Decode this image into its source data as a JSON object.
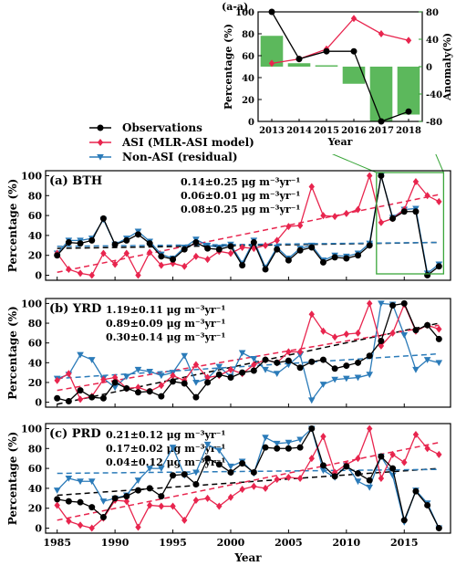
{
  "figure": {
    "legend": {
      "items": [
        {
          "label": "Observations",
          "color": "#000000",
          "marker": "circle"
        },
        {
          "label": "ASI (MLR-ASI model)",
          "color": "#e8254e",
          "marker": "diamond"
        },
        {
          "label": "Non-ASI (residual)",
          "color": "#2b7bb9",
          "marker": "triangle-down"
        }
      ]
    },
    "colors": {
      "obs": "#000000",
      "asi": "#e8254e",
      "nonasi": "#2b7bb9",
      "anomaly": "#5cb85c",
      "anomaly_axis": "#2e9a2e",
      "inset_frame": "#3aa63a"
    }
  },
  "chart_data": [
    {
      "id": "inset",
      "type": "bar+line",
      "panel_label": "(a-a)",
      "x": [
        2013,
        2014,
        2015,
        2016,
        2017,
        2018
      ],
      "xlabel": "Year",
      "ylabel": "Percentage (%)",
      "ylabel_right": "Anomaly(%)",
      "ylim": [
        0,
        100
      ],
      "ylim_right": [
        -80,
        80
      ],
      "yticks": [
        0,
        20,
        40,
        60,
        80,
        100
      ],
      "yticks_right": [
        -80,
        -40,
        0,
        40,
        80
      ],
      "series": [
        {
          "name": "Observations",
          "color": "#000000",
          "marker": "circle",
          "values": [
            100,
            57,
            64,
            64,
            0,
            9
          ]
        },
        {
          "name": "ASI (MLR-ASI model)",
          "color": "#e8254e",
          "marker": "diamond",
          "values": [
            53,
            57,
            66,
            94,
            80,
            74
          ]
        }
      ],
      "anomaly_bars": [
        45,
        5,
        2,
        -25,
        -80,
        -70
      ]
    },
    {
      "id": "bth",
      "type": "line",
      "panel_label": "(a) BTH",
      "xlim": [
        1984,
        2019
      ],
      "ylim": [
        -5,
        105
      ],
      "xticks": [
        1985,
        1990,
        1995,
        2000,
        2005,
        2010,
        2015
      ],
      "yticks": [
        0,
        20,
        40,
        60,
        80,
        100
      ],
      "ylabel": "Percentage (%)",
      "years": [
        1985,
        1986,
        1987,
        1988,
        1989,
        1990,
        1991,
        1992,
        1993,
        1994,
        1995,
        1996,
        1997,
        1998,
        1999,
        2000,
        2001,
        2002,
        2003,
        2004,
        2005,
        2006,
        2007,
        2008,
        2009,
        2010,
        2011,
        2012,
        2013,
        2014,
        2015,
        2016,
        2017,
        2018
      ],
      "trend_texts": [
        {
          "text": "0.14±0.25 μg m⁻³yr⁻¹",
          "color": "#000000"
        },
        {
          "text": "0.06±0.01 μg m⁻³yr⁻¹",
          "color": "#e8254e"
        },
        {
          "text": "0.08±0.25 μg m⁻³yr⁻¹",
          "color": "#2b7bb9"
        }
      ],
      "series": [
        {
          "name": "Observations",
          "color": "#000000",
          "marker": "circle",
          "values": [
            20,
            33,
            32,
            35,
            57,
            31,
            35,
            41,
            32,
            19,
            16,
            26,
            33,
            27,
            26,
            29,
            10,
            33,
            6,
            26,
            15,
            25,
            28,
            13,
            18,
            17,
            20,
            30,
            100,
            57,
            64,
            64,
            0,
            9
          ]
        },
        {
          "name": "ASI (MLR-ASI model)",
          "color": "#e8254e",
          "marker": "diamond",
          "values": [
            22,
            6,
            2,
            0,
            22,
            11,
            22,
            0,
            23,
            10,
            12,
            9,
            19,
            16,
            24,
            22,
            28,
            27,
            30,
            35,
            49,
            50,
            89,
            60,
            59,
            62,
            66,
            100,
            53,
            57,
            66,
            94,
            80,
            74
          ]
        },
        {
          "name": "Non-ASI (residual)",
          "color": "#2b7bb9",
          "marker": "triangle-down",
          "values": [
            22,
            35,
            35,
            37,
            56,
            31,
            37,
            44,
            34,
            21,
            17,
            28,
            36,
            30,
            28,
            31,
            12,
            35,
            8,
            28,
            17,
            27,
            30,
            15,
            20,
            19,
            22,
            32,
            100,
            58,
            66,
            67,
            2,
            11
          ]
        }
      ],
      "trend_lines": [
        {
          "color": "#000000",
          "start": [
            1985,
            27
          ],
          "end": [
            2018,
            33
          ]
        },
        {
          "color": "#e8254e",
          "start": [
            1985,
            3
          ],
          "end": [
            2018,
            81
          ]
        },
        {
          "color": "#2b7bb9",
          "start": [
            1985,
            29
          ],
          "end": [
            2018,
            33
          ]
        }
      ]
    },
    {
      "id": "yrd",
      "type": "line",
      "panel_label": "(b) YRD",
      "xlim": [
        1984,
        2019
      ],
      "ylim": [
        -5,
        105
      ],
      "xticks": [
        1985,
        1990,
        1995,
        2000,
        2005,
        2010,
        2015
      ],
      "yticks": [
        0,
        20,
        40,
        60,
        80,
        100
      ],
      "ylabel": "Percentage (%)",
      "years": [
        1985,
        1986,
        1987,
        1988,
        1989,
        1990,
        1991,
        1992,
        1993,
        1994,
        1995,
        1996,
        1997,
        1998,
        1999,
        2000,
        2001,
        2002,
        2003,
        2004,
        2005,
        2006,
        2007,
        2008,
        2009,
        2010,
        2011,
        2012,
        2013,
        2014,
        2015,
        2016,
        2017,
        2018
      ],
      "trend_texts": [
        {
          "text": "1.19±0.11 μg m⁻³yr⁻¹",
          "color": "#000000"
        },
        {
          "text": "0.89±0.09 μg m⁻³yr⁻¹",
          "color": "#e8254e"
        },
        {
          "text": "0.30±0.14 μg m⁻³yr⁻¹",
          "color": "#2b7bb9"
        }
      ],
      "series": [
        {
          "name": "Observations",
          "color": "#000000",
          "marker": "circle",
          "values": [
            4,
            1,
            12,
            5,
            4,
            20,
            14,
            10,
            11,
            6,
            21,
            19,
            5,
            20,
            28,
            25,
            30,
            32,
            43,
            40,
            42,
            35,
            41,
            43,
            34,
            37,
            40,
            47,
            62,
            98,
            100,
            73,
            78,
            64
          ]
        },
        {
          "name": "ASI (MLR-ASI model)",
          "color": "#e8254e",
          "marker": "diamond",
          "values": [
            22,
            29,
            3,
            6,
            23,
            25,
            14,
            15,
            11,
            17,
            27,
            22,
            38,
            25,
            27,
            33,
            29,
            38,
            43,
            40,
            51,
            51,
            89,
            72,
            66,
            69,
            70,
            100,
            57,
            70,
            99,
            72,
            78,
            74
          ]
        },
        {
          "name": "Non-ASI (residual)",
          "color": "#2b7bb9",
          "marker": "triangle-down",
          "values": [
            24,
            28,
            48,
            43,
            24,
            15,
            26,
            33,
            31,
            27,
            30,
            47,
            20,
            24,
            36,
            26,
            50,
            44,
            33,
            29,
            38,
            48,
            2,
            18,
            23,
            24,
            25,
            28,
            100,
            99,
            68,
            33,
            43,
            40
          ]
        }
      ],
      "trend_lines": [
        {
          "color": "#000000",
          "start": [
            1985,
            -2
          ],
          "end": [
            2018,
            80
          ]
        },
        {
          "color": "#e8254e",
          "start": [
            1985,
            12
          ],
          "end": [
            2018,
            78
          ]
        },
        {
          "color": "#2b7bb9",
          "start": [
            1985,
            24
          ],
          "end": [
            2018,
            49
          ]
        }
      ]
    },
    {
      "id": "prd",
      "type": "line",
      "panel_label": "(c) PRD",
      "xlim": [
        1984,
        2019
      ],
      "ylim": [
        -5,
        105
      ],
      "xticks": [
        1985,
        1990,
        1995,
        2000,
        2005,
        2010,
        2015
      ],
      "yticks": [
        0,
        20,
        40,
        60,
        80,
        100
      ],
      "ylabel": "Percentage (%)",
      "xlabel": "Year",
      "years": [
        1985,
        1986,
        1987,
        1988,
        1989,
        1990,
        1991,
        1992,
        1993,
        1994,
        1995,
        1996,
        1997,
        1998,
        1999,
        2000,
        2001,
        2002,
        2003,
        2004,
        2005,
        2006,
        2007,
        2008,
        2009,
        2010,
        2011,
        2012,
        2013,
        2014,
        2015,
        2016,
        2017,
        2018
      ],
      "trend_texts": [
        {
          "text": "0.21±0.12 μg m⁻³yr⁻¹",
          "color": "#000000"
        },
        {
          "text": "0.17±0.02 μg m⁻³yr⁻¹",
          "color": "#e8254e"
        },
        {
          "text": "0.04±0.12 μg m⁻³yr⁻¹",
          "color": "#2b7bb9"
        }
      ],
      "series": [
        {
          "name": "Observations",
          "color": "#000000",
          "marker": "circle",
          "values": [
            29,
            27,
            26,
            21,
            11,
            30,
            32,
            38,
            40,
            32,
            53,
            54,
            44,
            70,
            64,
            56,
            65,
            56,
            81,
            80,
            80,
            81,
            100,
            63,
            52,
            62,
            55,
            48,
            72,
            60,
            8,
            37,
            23,
            0
          ]
        },
        {
          "name": "ASI (MLR-ASI model)",
          "color": "#e8254e",
          "marker": "diamond",
          "values": [
            23,
            7,
            3,
            0,
            10,
            28,
            27,
            1,
            23,
            22,
            22,
            8,
            28,
            30,
            22,
            31,
            39,
            42,
            40,
            49,
            51,
            50,
            70,
            92,
            56,
            64,
            70,
            100,
            50,
            74,
            66,
            94,
            80,
            74
          ]
        },
        {
          "name": "Non-ASI (residual)",
          "color": "#2b7bb9",
          "marker": "triangle-down",
          "values": [
            38,
            50,
            47,
            47,
            27,
            30,
            33,
            48,
            60,
            60,
            81,
            53,
            56,
            84,
            78,
            62,
            67,
            55,
            91,
            85,
            86,
            89,
            100,
            58,
            51,
            63,
            47,
            41,
            72,
            53,
            6,
            38,
            25,
            0
          ]
        }
      ],
      "trend_lines": [
        {
          "color": "#000000",
          "start": [
            1985,
            33
          ],
          "end": [
            2018,
            60
          ]
        },
        {
          "color": "#e8254e",
          "start": [
            1985,
            8
          ],
          "end": [
            2018,
            86
          ]
        },
        {
          "color": "#2b7bb9",
          "start": [
            1985,
            55
          ],
          "end": [
            2018,
            59
          ]
        }
      ]
    }
  ]
}
